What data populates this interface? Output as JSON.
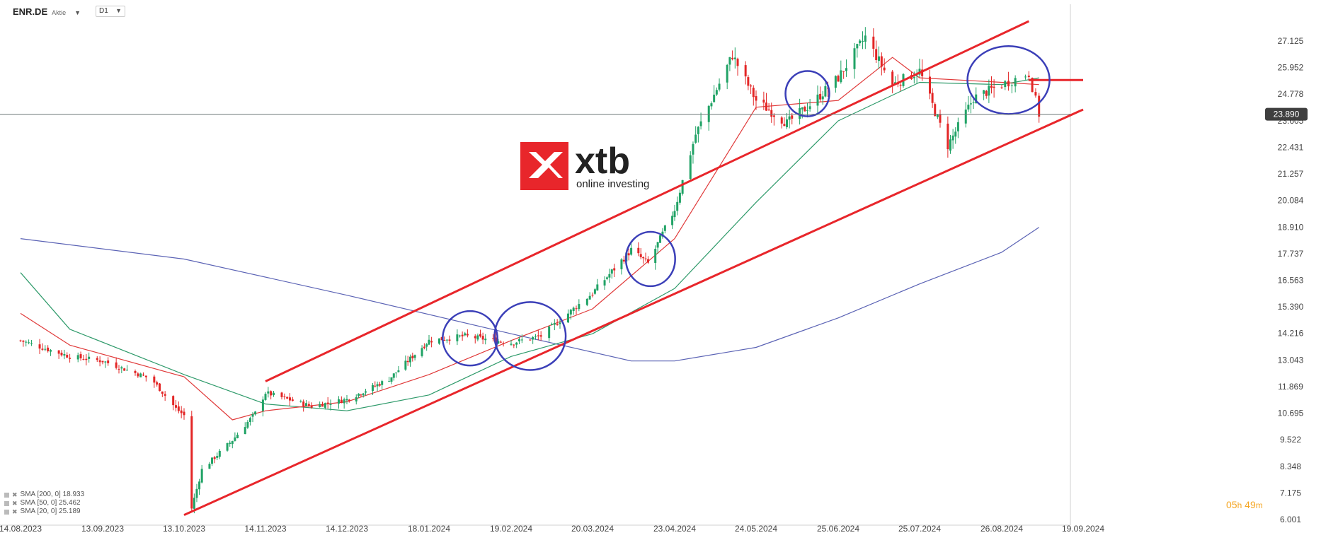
{
  "header": {
    "symbol": "ENR.DE",
    "symbol_type": "Aktie",
    "timeframe": "D1"
  },
  "logo": {
    "brand": "xtb",
    "tagline": "online investing",
    "color": "#e8262b"
  },
  "countdown": {
    "hours": "05",
    "h_unit": "h",
    "minutes": "49",
    "m_unit": "m"
  },
  "legend": [
    {
      "label": "SMA [200, 0] 18.933",
      "color": "#5b63b5"
    },
    {
      "label": "SMA [50, 0] 25.462",
      "color": "#2e9a6a"
    },
    {
      "label": "SMA [20, 0] 25.189",
      "color": "#e03a3a"
    }
  ],
  "colors": {
    "bull": "#21a366",
    "bear": "#e32626",
    "channel": "#e8262b",
    "circle": "#3b3fb8",
    "current_line": "#6f7a7a",
    "sma200": "#5b63b5",
    "sma50": "#2e9a6a",
    "sma20": "#e03a3a"
  },
  "chart_data": {
    "type": "candlestick",
    "y_ticks": [
      "27.125",
      "25.952",
      "24.778",
      "23.605",
      "22.431",
      "21.257",
      "20.084",
      "18.910",
      "17.737",
      "16.563",
      "15.390",
      "14.216",
      "13.043",
      "11.869",
      "10.695",
      "9.522",
      "8.348",
      "7.175",
      "6.001"
    ],
    "y_range": [
      6.001,
      27.125
    ],
    "x_ticks": [
      "14.08.2023",
      "13.09.2023",
      "13.10.2023",
      "14.11.2023",
      "14.12.2023",
      "18.01.2024",
      "19.02.2024",
      "20.03.2024",
      "23.04.2024",
      "24.05.2024",
      "25.06.2024",
      "25.07.2024",
      "26.08.2024",
      "19.09.2024"
    ],
    "current_price": 23.89,
    "current_price_label": "23.890",
    "anchors": [
      {
        "date": "14.08.2023",
        "close": 13.9
      },
      {
        "date": "01.09.2023",
        "close": 13.2
      },
      {
        "date": "13.09.2023",
        "close": 13.0
      },
      {
        "date": "01.10.2023",
        "close": 12.2
      },
      {
        "date": "10.10.2023",
        "close": 10.9
      },
      {
        "date": "13.10.2023",
        "close": 10.6
      },
      {
        "date": "16.10.2023",
        "close": 6.5
      },
      {
        "date": "20.10.2023",
        "close": 8.2
      },
      {
        "date": "01.11.2023",
        "close": 9.5
      },
      {
        "date": "10.11.2023",
        "close": 10.7
      },
      {
        "date": "14.11.2023",
        "close": 11.6
      },
      {
        "date": "01.12.2023",
        "close": 11.0
      },
      {
        "date": "14.12.2023",
        "close": 11.3
      },
      {
        "date": "01.01.2024",
        "close": 12.2
      },
      {
        "date": "18.01.2024",
        "close": 13.9
      },
      {
        "date": "01.02.2024",
        "close": 14.1
      },
      {
        "date": "19.02.2024",
        "close": 13.8
      },
      {
        "date": "01.03.2024",
        "close": 14.1
      },
      {
        "date": "20.03.2024",
        "close": 16.0
      },
      {
        "date": "05.04.2024",
        "close": 17.9
      },
      {
        "date": "12.04.2024",
        "close": 17.3
      },
      {
        "date": "23.04.2024",
        "close": 19.7
      },
      {
        "date": "01.05.2024",
        "close": 23.0
      },
      {
        "date": "15.05.2024",
        "close": 26.5
      },
      {
        "date": "24.05.2024",
        "close": 24.5
      },
      {
        "date": "05.06.2024",
        "close": 23.5
      },
      {
        "date": "15.06.2024",
        "close": 24.4
      },
      {
        "date": "25.06.2024",
        "close": 25.5
      },
      {
        "date": "05.07.2024",
        "close": 27.3
      },
      {
        "date": "15.07.2024",
        "close": 25.2
      },
      {
        "date": "25.07.2024",
        "close": 25.8
      },
      {
        "date": "05.08.2024",
        "close": 22.5
      },
      {
        "date": "15.08.2024",
        "close": 24.6
      },
      {
        "date": "26.08.2024",
        "close": 25.2
      },
      {
        "date": "03.09.2024",
        "close": 25.7
      },
      {
        "date": "06.09.2024",
        "close": 23.9
      }
    ],
    "series": [
      {
        "name": "SMA [200, 0] 18.933",
        "points": [
          {
            "date": "14.08.2023",
            "value": 18.4
          },
          {
            "date": "13.10.2023",
            "value": 17.5
          },
          {
            "date": "14.12.2023",
            "value": 15.9
          },
          {
            "date": "19.02.2024",
            "value": 14.2
          },
          {
            "date": "05.04.2024",
            "value": 13.0
          },
          {
            "date": "23.04.2024",
            "value": 13.0
          },
          {
            "date": "24.05.2024",
            "value": 13.6
          },
          {
            "date": "25.06.2024",
            "value": 14.9
          },
          {
            "date": "25.07.2024",
            "value": 16.4
          },
          {
            "date": "26.08.2024",
            "value": 17.8
          },
          {
            "date": "06.09.2024",
            "value": 18.9
          }
        ]
      },
      {
        "name": "SMA [50, 0] 25.462",
        "points": [
          {
            "date": "14.08.2023",
            "value": 16.9
          },
          {
            "date": "01.09.2023",
            "value": 14.4
          },
          {
            "date": "13.10.2023",
            "value": 12.4
          },
          {
            "date": "14.11.2023",
            "value": 11.1
          },
          {
            "date": "14.12.2023",
            "value": 10.8
          },
          {
            "date": "18.01.2024",
            "value": 11.5
          },
          {
            "date": "19.02.2024",
            "value": 13.2
          },
          {
            "date": "20.03.2024",
            "value": 14.2
          },
          {
            "date": "23.04.2024",
            "value": 16.2
          },
          {
            "date": "24.05.2024",
            "value": 20.0
          },
          {
            "date": "25.06.2024",
            "value": 23.6
          },
          {
            "date": "25.07.2024",
            "value": 25.3
          },
          {
            "date": "26.08.2024",
            "value": 25.2
          },
          {
            "date": "06.09.2024",
            "value": 25.5
          }
        ]
      },
      {
        "name": "SMA [20, 0] 25.189",
        "points": [
          {
            "date": "14.08.2023",
            "value": 15.1
          },
          {
            "date": "01.09.2023",
            "value": 13.7
          },
          {
            "date": "13.10.2023",
            "value": 12.3
          },
          {
            "date": "01.11.2023",
            "value": 10.4
          },
          {
            "date": "14.11.2023",
            "value": 10.8
          },
          {
            "date": "14.12.2023",
            "value": 11.2
          },
          {
            "date": "18.01.2024",
            "value": 12.4
          },
          {
            "date": "19.02.2024",
            "value": 13.9
          },
          {
            "date": "20.03.2024",
            "value": 15.3
          },
          {
            "date": "23.04.2024",
            "value": 18.4
          },
          {
            "date": "24.05.2024",
            "value": 24.2
          },
          {
            "date": "25.06.2024",
            "value": 24.5
          },
          {
            "date": "15.07.2024",
            "value": 26.4
          },
          {
            "date": "25.07.2024",
            "value": 25.5
          },
          {
            "date": "26.08.2024",
            "value": 25.3
          },
          {
            "date": "06.09.2024",
            "value": 25.2
          }
        ]
      }
    ],
    "channel": {
      "upper": [
        {
          "date": "14.11.2023",
          "value": 12.1
        },
        {
          "date": "03.09.2024",
          "value": 28.0
        }
      ],
      "lower": [
        {
          "date": "13.10.2023",
          "value": 6.2
        },
        {
          "date": "19.09.2024",
          "value": 24.1
        }
      ]
    },
    "resistance_marker": {
      "from": "03.09.2024",
      "to": "19.09.2024",
      "value": 25.4
    },
    "circles": [
      {
        "date": "03.02.2024",
        "value": 14.0,
        "rx_days": 10,
        "ry": 1.2
      },
      {
        "date": "26.02.2024",
        "value": 14.1,
        "rx_days": 13,
        "ry": 1.5
      },
      {
        "date": "13.04.2024",
        "value": 17.5,
        "rx_days": 9,
        "ry": 1.2
      },
      {
        "date": "13.06.2024",
        "value": 24.8,
        "rx_days": 8,
        "ry": 1.0
      },
      {
        "date": "28.08.2024",
        "value": 25.4,
        "rx_days": 15,
        "ry": 1.5
      }
    ]
  }
}
